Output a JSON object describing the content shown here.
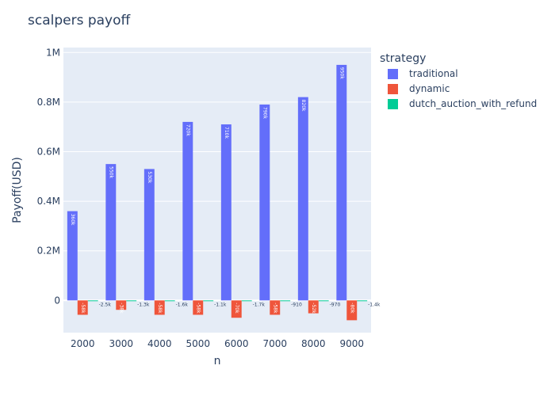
{
  "chart_data": {
    "type": "bar",
    "title": "scalpers payoff",
    "xlabel": "n",
    "ylabel": "Payoff(USD)",
    "categories": [
      "2000",
      "3000",
      "4000",
      "5000",
      "6000",
      "7000",
      "8000",
      "9000"
    ],
    "ylim": [
      -130000,
      1020000
    ],
    "yticks": [
      0,
      200000,
      400000,
      600000,
      800000,
      1000000
    ],
    "ytick_labels": [
      "0",
      "0.2M",
      "0.4M",
      "0.6M",
      "0.8M",
      "1M"
    ],
    "legend_title": "strategy",
    "legend_position": "right",
    "series": [
      {
        "name": "traditional",
        "color": "#636efa",
        "values": [
          360000,
          550000,
          530000,
          720000,
          710000,
          790000,
          820000,
          950000
        ],
        "labels": [
          "360k",
          "550k",
          "530k",
          "720k",
          "710k",
          "790k",
          "820k",
          "950k"
        ],
        "label_color": "#ffffff"
      },
      {
        "name": "dynamic",
        "color": "#ef553b",
        "values": [
          -58000,
          -38000,
          -58000,
          -58000,
          -70000,
          -58000,
          -52000,
          -80000
        ],
        "labels": [
          "-58k",
          "-38k",
          "-58k",
          "-58k",
          "-70k",
          "-58k",
          "-52k",
          "-80k"
        ],
        "label_color": "#ffffff"
      },
      {
        "name": "dutch_auction_with_refund",
        "color": "#00cc96",
        "values": [
          -2500,
          -1300,
          -1600,
          -1100,
          -1700,
          -910,
          -970,
          -1400
        ],
        "labels": [
          "-2.5k",
          "-1.3k",
          "-1.6k",
          "-1.1k",
          "-1.7k",
          "-910",
          "-970",
          "-1.4k"
        ],
        "label_color": "#2a3f5f"
      }
    ]
  }
}
